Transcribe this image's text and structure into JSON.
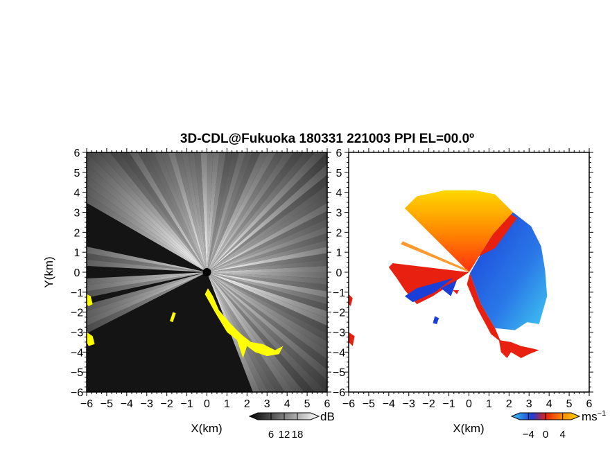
{
  "title": "3D-CDL@Fukuoka 180331 221003 PPI EL=00.0º",
  "chart_data": [
    {
      "type": "heatmap",
      "name": "reflectivity-ppi",
      "xlabel": "X(km)",
      "ylabel": "Y(km)",
      "xlim": [
        -6,
        6
      ],
      "ylim": [
        -6,
        6
      ],
      "xticks": [
        "−6",
        "−5",
        "−4",
        "−3",
        "−2",
        "−1",
        "0",
        "1",
        "2",
        "3",
        "4",
        "5",
        "6"
      ],
      "yticks": [
        "6",
        "5",
        "4",
        "3",
        "2",
        "1",
        "0",
        "−1",
        "−2",
        "−3",
        "−4",
        "−5",
        "−6"
      ],
      "colorbar": {
        "unit": "dB",
        "ticks": [
          "6",
          "12",
          "18"
        ],
        "range": [
          0,
          24
        ]
      },
      "colors": {
        "background": "#111111",
        "low": "#3c3c3c",
        "high": "#ffffff",
        "flag": "#ffff00"
      },
      "blocked_sectors_deg": [
        [
          148,
          168
        ],
        [
          176,
          181
        ],
        [
          190,
          195
        ],
        [
          205,
          290
        ]
      ]
    },
    {
      "type": "heatmap",
      "name": "doppler-velocity-ppi",
      "xlabel": "X(km)",
      "ylabel": "",
      "xlim": [
        -6,
        6
      ],
      "ylim": [
        -6,
        6
      ],
      "xticks": [
        "−6",
        "−5",
        "−4",
        "−3",
        "−2",
        "−1",
        "0",
        "1",
        "2",
        "3",
        "4",
        "5",
        "6"
      ],
      "yticks": [
        "6",
        "5",
        "4",
        "3",
        "2",
        "1",
        "0",
        "−1",
        "−2",
        "−3",
        "−4",
        "−5",
        "−6"
      ],
      "colorbar": {
        "unit": "ms",
        "unit_exp": "−1",
        "ticks": [
          "−4",
          "0",
          "4"
        ],
        "range": [
          -6,
          6
        ]
      },
      "colors": {
        "negative": "#1a3fd8",
        "negative_far": "#40c8f0",
        "near_zero": "#e82010",
        "positive": "#ff7a00",
        "positive_far": "#ffd400",
        "background": "#ffffff"
      }
    }
  ]
}
